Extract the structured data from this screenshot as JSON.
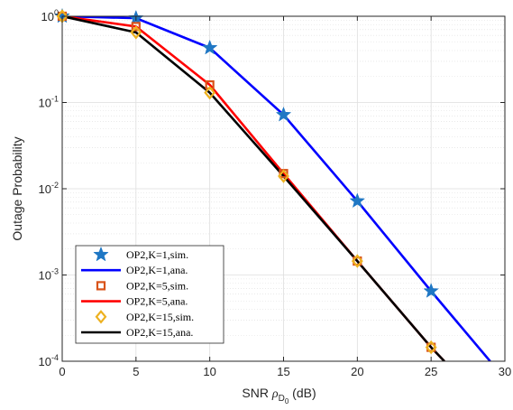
{
  "chart_data": {
    "type": "line",
    "xlabel": {
      "prefix": "SNR ",
      "symbol": "ρ",
      "sub": "D",
      "subsub": "0",
      "suffix": " (dB)"
    },
    "ylabel": "Outage Probability",
    "xlim": [
      0,
      30
    ],
    "ylim": [
      0.0001,
      1
    ],
    "yscale": "log",
    "grid": true,
    "legend_position": "bottom-left",
    "x_ticks": [
      0,
      5,
      10,
      15,
      20,
      25,
      30
    ],
    "x_tick_labels": [
      "0",
      "5",
      "10",
      "15",
      "20",
      "25",
      "30"
    ],
    "y_ticks": [
      {
        "value": 1,
        "base": "10",
        "exp": "0"
      },
      {
        "value": 0.1,
        "base": "10",
        "exp": "-1"
      },
      {
        "value": 0.01,
        "base": "10",
        "exp": "-2"
      },
      {
        "value": 0.001,
        "base": "10",
        "exp": "-3"
      },
      {
        "value": 0.0001,
        "base": "10",
        "exp": "-4"
      }
    ],
    "series": [
      {
        "name": "OP2,K=1,sim.",
        "kind": "markers",
        "marker": "star",
        "color": "#1f77c4",
        "x": [
          0,
          5,
          10,
          15,
          20,
          25
        ],
        "y": [
          1.0,
          0.95,
          0.43,
          0.072,
          0.0072,
          0.00065
        ]
      },
      {
        "name": "OP2,K=1,ana.",
        "kind": "line",
        "color": "#0000ff",
        "x": [
          0,
          5,
          10,
          15,
          20,
          25,
          29
        ],
        "y": [
          1.0,
          0.95,
          0.43,
          0.072,
          0.0072,
          0.00065,
          0.0001
        ]
      },
      {
        "name": "OP2,K=5,sim.",
        "kind": "markers",
        "marker": "square",
        "color": "#d95319",
        "x": [
          0,
          5,
          10,
          15,
          20,
          25
        ],
        "y": [
          1.0,
          0.76,
          0.16,
          0.015,
          0.00145,
          0.000145
        ]
      },
      {
        "name": "OP2,K=5,ana.",
        "kind": "line",
        "color": "#ff0000",
        "x": [
          0,
          5,
          10,
          15,
          20,
          25,
          25.9
        ],
        "y": [
          1.0,
          0.76,
          0.16,
          0.015,
          0.00145,
          0.000145,
          0.0001
        ]
      },
      {
        "name": "OP2,K=15,sim.",
        "kind": "markers",
        "marker": "diamond",
        "color": "#edb120",
        "x": [
          0,
          5,
          10,
          15,
          20,
          25
        ],
        "y": [
          1.0,
          0.65,
          0.13,
          0.014,
          0.00145,
          0.000145
        ]
      },
      {
        "name": "OP2,K=15,ana.",
        "kind": "line",
        "color": "#000000",
        "x": [
          0,
          5,
          10,
          15,
          20,
          25,
          25.9
        ],
        "y": [
          1.0,
          0.65,
          0.13,
          0.014,
          0.00145,
          0.000145,
          0.0001
        ]
      }
    ]
  }
}
